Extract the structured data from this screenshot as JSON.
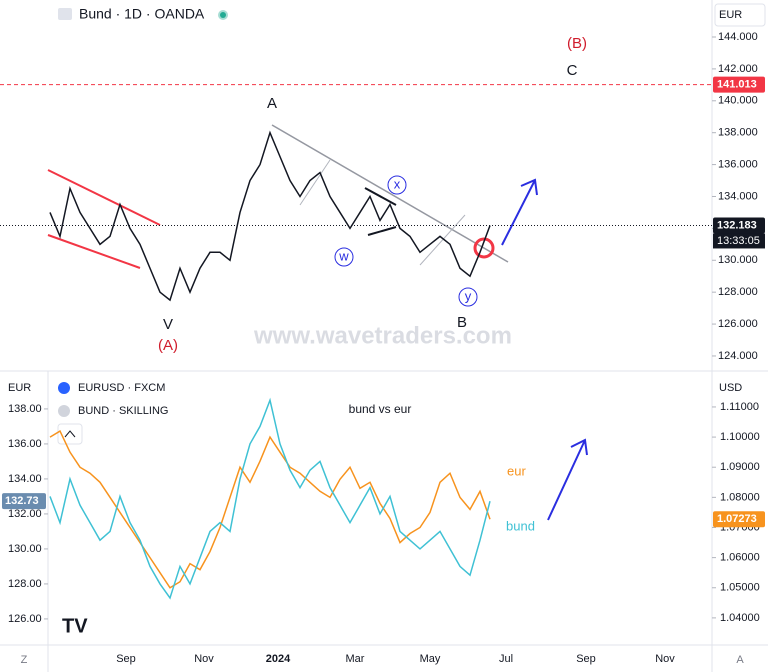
{
  "chart_data": [
    {
      "type": "line",
      "title": "Bund · 1D · OANDA",
      "currency": "EUR",
      "series": [
        {
          "name": "Bund",
          "color": "#131722",
          "values": [
            133,
            131.5,
            134.5,
            133,
            132,
            131,
            131.5,
            133.5,
            132,
            131,
            129.5,
            128,
            127.5,
            129.5,
            128,
            129.5,
            130.5,
            130.5,
            130,
            133,
            135,
            136,
            138,
            136.5,
            135,
            134,
            135,
            135.5,
            134,
            133,
            132,
            133,
            134,
            132.5,
            133.5,
            132,
            131.5,
            130.5,
            131,
            131.5,
            131,
            129.5,
            129,
            130.5,
            132.183
          ]
        }
      ],
      "ylim": [
        123.12,
        146.32
      ],
      "yticks": [
        {
          "value": 124,
          "label": "124.000"
        },
        {
          "value": 126,
          "label": "126.000"
        },
        {
          "value": 128,
          "label": "128.000"
        },
        {
          "value": 130,
          "label": "130.000"
        },
        {
          "value": 132,
          "label": "132.000"
        },
        {
          "value": 134,
          "label": "134.000"
        },
        {
          "value": 136,
          "label": "136.000"
        },
        {
          "value": 138,
          "label": "138.000"
        },
        {
          "value": 140,
          "label": "140.000"
        },
        {
          "value": 142,
          "label": "142.000"
        },
        {
          "value": 144,
          "label": "144.000"
        }
      ],
      "price_lines": [
        {
          "value": 141.013,
          "label": "141.013",
          "color": "#f23645"
        },
        {
          "value": 132.183,
          "label": "132.183",
          "color": "#131722"
        }
      ],
      "countdown": "13:33:05",
      "annotations": [
        "A",
        "B",
        "C",
        "(A)",
        "(B)",
        "V",
        "w",
        "x",
        "y"
      ],
      "watermark": "www.wavetraders.com"
    },
    {
      "type": "line",
      "title": "bund vs eur",
      "y_unit": "EUR",
      "y2_unit": "USD",
      "series": [
        {
          "name": "EURUSD · FXCM",
          "label": "eur",
          "color": "#f7931e",
          "axis": "y2",
          "last_label": "1.07273",
          "values": [
            1.1,
            1.102,
            1.095,
            1.09,
            1.088,
            1.085,
            1.08,
            1.075,
            1.07,
            1.065,
            1.06,
            1.055,
            1.05,
            1.052,
            1.058,
            1.056,
            1.062,
            1.07,
            1.08,
            1.09,
            1.085,
            1.092,
            1.1,
            1.095,
            1.09,
            1.088,
            1.085,
            1.082,
            1.08,
            1.086,
            1.09,
            1.083,
            1.085,
            1.078,
            1.073,
            1.065,
            1.068,
            1.07,
            1.075,
            1.085,
            1.088,
            1.08,
            1.076,
            1.082,
            1.07273
          ]
        },
        {
          "name": "BUND · SKILLING",
          "label": "bund",
          "color": "#3fc1d4",
          "last_label": "132.73",
          "values": [
            133,
            131.5,
            134,
            132.5,
            131.5,
            130.5,
            131,
            133,
            131.5,
            130.5,
            129,
            128,
            127.2,
            129,
            128,
            129.5,
            131,
            131.5,
            131,
            134,
            136,
            137,
            138.5,
            136,
            134.5,
            133.5,
            134.5,
            135,
            133.5,
            132.5,
            131.5,
            132.5,
            133.5,
            132,
            133,
            131,
            130.5,
            130,
            130.5,
            131,
            130,
            129,
            128.5,
            130.5,
            132.73
          ]
        }
      ],
      "ylim": [
        124.51,
        140.11
      ],
      "yticks": [
        {
          "value": 126,
          "label": "126.00"
        },
        {
          "value": 128,
          "label": "128.00"
        },
        {
          "value": 130,
          "label": "130.00"
        },
        {
          "value": 132,
          "label": "132.00"
        },
        {
          "value": 134,
          "label": "134.00"
        },
        {
          "value": 136,
          "label": "136.00"
        },
        {
          "value": 138,
          "label": "138.00"
        }
      ],
      "y2lim": [
        1.031,
        1.1216
      ],
      "y2ticks": [
        {
          "value": 1.04,
          "label": "1.04000"
        },
        {
          "value": 1.05,
          "label": "1.05000"
        },
        {
          "value": 1.06,
          "label": "1.06000"
        },
        {
          "value": 1.07,
          "label": "1.07000"
        },
        {
          "value": 1.08,
          "label": "1.08000"
        },
        {
          "value": 1.09,
          "label": "1.09000"
        },
        {
          "value": 1.1,
          "label": "1.10000"
        },
        {
          "value": 1.11,
          "label": "1.11000"
        }
      ]
    }
  ],
  "x_axis_labels": [
    "Sep",
    "Nov",
    "2024",
    "Mar",
    "May",
    "Jul",
    "Sep",
    "Nov"
  ],
  "toolbar": [
    "Z",
    "A"
  ]
}
